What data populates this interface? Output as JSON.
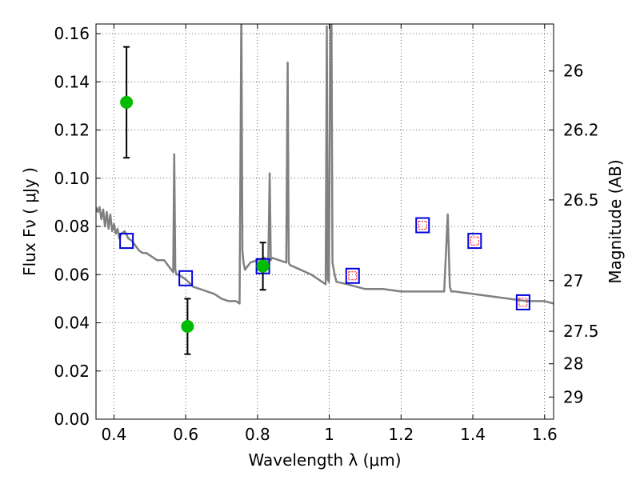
{
  "chart_data": {
    "type": "line",
    "xlabel": "Wavelength  λ (μm)",
    "ylabel": "Flux  Fν  ( μJy )",
    "y2label": "Magnitude (AB)",
    "xlim": [
      0.35,
      1.625
    ],
    "ylim": [
      0.0,
      0.164
    ],
    "grid": true,
    "x_ticks": [
      0.4,
      0.6,
      0.8,
      1.0,
      1.2,
      1.4,
      1.6
    ],
    "x_tick_labels": [
      "0.4",
      "0.6",
      "0.8",
      "1",
      "1.2",
      "1.4",
      "1.6"
    ],
    "y_ticks": [
      0.0,
      0.02,
      0.04,
      0.06,
      0.08,
      0.1,
      0.12,
      0.14,
      0.16
    ],
    "y_tick_labels": [
      "0.00",
      "0.02",
      "0.04",
      "0.06",
      "0.08",
      "0.10",
      "0.12",
      "0.14",
      "0.16"
    ],
    "right_axis_ticks": [
      {
        "label": "26",
        "flux": 0.1445
      },
      {
        "label": "26.2",
        "flux": 0.12
      },
      {
        "label": "26.5",
        "flux": 0.091
      },
      {
        "label": "27",
        "flux": 0.0575
      },
      {
        "label": "27.5",
        "flux": 0.0365
      },
      {
        "label": "28",
        "flux": 0.023
      },
      {
        "label": "29",
        "flux": 0.0092
      }
    ],
    "colors": {
      "spectrum": "#808080",
      "observed": "#00bb00",
      "model_box": "#0000dd",
      "inner_box": "#ff0000",
      "errorbar": "#000000"
    },
    "series": [
      {
        "kind": "spectrum",
        "x": [
          0.35,
          0.355,
          0.36,
          0.365,
          0.37,
          0.375,
          0.38,
          0.385,
          0.39,
          0.395,
          0.4,
          0.405,
          0.41,
          0.415,
          0.42,
          0.43,
          0.44,
          0.45,
          0.46,
          0.47,
          0.48,
          0.49,
          0.5,
          0.51,
          0.52,
          0.53,
          0.54,
          0.55,
          0.56,
          0.565,
          0.568,
          0.571,
          0.574,
          0.58,
          0.6,
          0.62,
          0.64,
          0.66,
          0.68,
          0.7,
          0.72,
          0.74,
          0.75,
          0.755,
          0.758,
          0.761,
          0.765,
          0.78,
          0.8,
          0.82,
          0.83,
          0.834,
          0.837,
          0.84,
          0.86,
          0.88,
          0.884,
          0.887,
          0.89,
          0.92,
          0.95,
          0.98,
          0.99,
          0.993,
          0.996,
          0.999,
          1.003,
          1.006,
          1.009,
          1.015,
          1.02,
          1.05,
          1.1,
          1.15,
          1.2,
          1.25,
          1.3,
          1.32,
          1.33,
          1.333,
          1.336,
          1.34,
          1.35,
          1.4,
          1.45,
          1.5,
          1.55,
          1.6,
          1.625
        ],
        "y": [
          0.088,
          0.086,
          0.088,
          0.083,
          0.087,
          0.08,
          0.086,
          0.079,
          0.085,
          0.078,
          0.081,
          0.077,
          0.079,
          0.075,
          0.077,
          0.078,
          0.075,
          0.074,
          0.072,
          0.07,
          0.069,
          0.069,
          0.068,
          0.067,
          0.066,
          0.066,
          0.066,
          0.064,
          0.062,
          0.061,
          0.11,
          0.062,
          0.06,
          0.06,
          0.058,
          0.055,
          0.054,
          0.053,
          0.052,
          0.05,
          0.049,
          0.049,
          0.048,
          0.17,
          0.07,
          0.065,
          0.062,
          0.065,
          0.066,
          0.067,
          0.064,
          0.102,
          0.066,
          0.067,
          0.066,
          0.065,
          0.148,
          0.065,
          0.064,
          0.062,
          0.06,
          0.057,
          0.056,
          0.163,
          0.058,
          0.057,
          0.17,
          0.17,
          0.065,
          0.06,
          0.057,
          0.056,
          0.054,
          0.054,
          0.053,
          0.053,
          0.053,
          0.053,
          0.085,
          0.07,
          0.055,
          0.053,
          0.053,
          0.052,
          0.051,
          0.05,
          0.049,
          0.049,
          0.048
        ]
      },
      {
        "kind": "observed",
        "name": "",
        "x": [
          0.435,
          0.605,
          0.815
        ],
        "y": [
          0.1315,
          0.0385,
          0.0635
        ],
        "yerr": [
          0.023,
          0.0115,
          0.0098
        ]
      },
      {
        "kind": "model",
        "name": "",
        "x": [
          0.435,
          0.6,
          0.815,
          1.065,
          1.26,
          1.405,
          1.54
        ],
        "y": [
          0.074,
          0.0585,
          0.0635,
          0.0595,
          0.0805,
          0.074,
          0.0485
        ]
      },
      {
        "kind": "model-inner",
        "name": "",
        "x": [
          1.065,
          1.26,
          1.405,
          1.54
        ],
        "y": [
          0.0595,
          0.0805,
          0.074,
          0.0485
        ]
      }
    ]
  }
}
